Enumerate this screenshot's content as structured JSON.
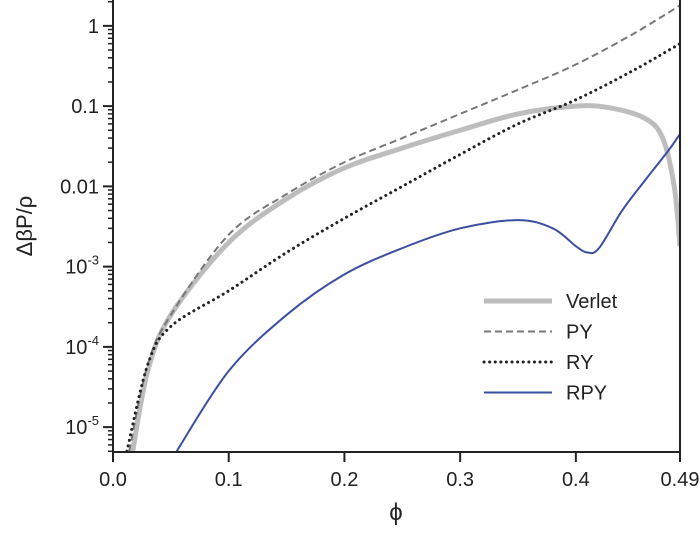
{
  "chart_data": {
    "type": "line",
    "title": "",
    "xlabel": "ϕ",
    "ylabel": "ΔβP/ρ",
    "xlim": [
      0,
      0.49
    ],
    "ylim": [
      4.9e-06,
      2.1
    ],
    "yscale": "log",
    "grid": false,
    "legend_position": "bottom-right",
    "x_ticks": [
      {
        "v": 0.0,
        "label": "0.0"
      },
      {
        "v": 0.1,
        "label": "0.1"
      },
      {
        "v": 0.2,
        "label": "0.2"
      },
      {
        "v": 0.3,
        "label": "0.3"
      },
      {
        "v": 0.4,
        "label": "0.4"
      },
      {
        "v": 0.49,
        "label": "0.49"
      }
    ],
    "y_ticks": [
      {
        "v": 1,
        "label": "1",
        "exp": ""
      },
      {
        "v": 0.1,
        "label": "0.1",
        "exp": ""
      },
      {
        "v": 0.01,
        "label": "0.01",
        "exp": ""
      },
      {
        "v": 0.001,
        "label": "10",
        "exp": "-3"
      },
      {
        "v": 0.0001,
        "label": "10",
        "exp": "-4"
      },
      {
        "v": 1e-05,
        "label": "10",
        "exp": "-5"
      }
    ],
    "series": [
      {
        "name": "Verlet",
        "color": "#bdbdbd",
        "style": "thick-solid",
        "x": [
          0.017,
          0.03,
          0.05,
          0.1,
          0.15,
          0.2,
          0.25,
          0.3,
          0.35,
          0.4,
          0.43,
          0.46,
          0.475,
          0.485,
          0.49
        ],
        "y": [
          5e-06,
          5e-05,
          0.00025,
          0.002,
          0.007,
          0.017,
          0.03,
          0.05,
          0.08,
          0.1,
          0.095,
          0.07,
          0.04,
          0.01,
          0.0018
        ]
      },
      {
        "name": "PY",
        "color": "#777777",
        "style": "dashed",
        "x": [
          0.014,
          0.03,
          0.05,
          0.1,
          0.15,
          0.2,
          0.25,
          0.3,
          0.35,
          0.4,
          0.45,
          0.49
        ],
        "y": [
          5e-06,
          6e-05,
          0.00025,
          0.0025,
          0.008,
          0.02,
          0.04,
          0.08,
          0.16,
          0.33,
          0.8,
          1.8
        ]
      },
      {
        "name": "RY",
        "color": "#222222",
        "style": "dotted",
        "x": [
          0.012,
          0.03,
          0.05,
          0.1,
          0.15,
          0.2,
          0.25,
          0.3,
          0.35,
          0.4,
          0.45,
          0.49
        ],
        "y": [
          5e-06,
          6e-05,
          0.00018,
          0.0005,
          0.0015,
          0.004,
          0.01,
          0.025,
          0.06,
          0.12,
          0.28,
          0.6
        ]
      },
      {
        "name": "RPY",
        "color": "#3a4fa0",
        "style": "solid",
        "x": [
          0.055,
          0.1,
          0.15,
          0.2,
          0.25,
          0.3,
          0.35,
          0.38,
          0.4,
          0.41,
          0.42,
          0.44,
          0.46,
          0.48,
          0.49
        ],
        "y": [
          5e-06,
          5e-05,
          0.00025,
          0.0008,
          0.0017,
          0.003,
          0.0038,
          0.003,
          0.0018,
          0.0015,
          0.0017,
          0.005,
          0.012,
          0.028,
          0.045
        ]
      }
    ]
  }
}
